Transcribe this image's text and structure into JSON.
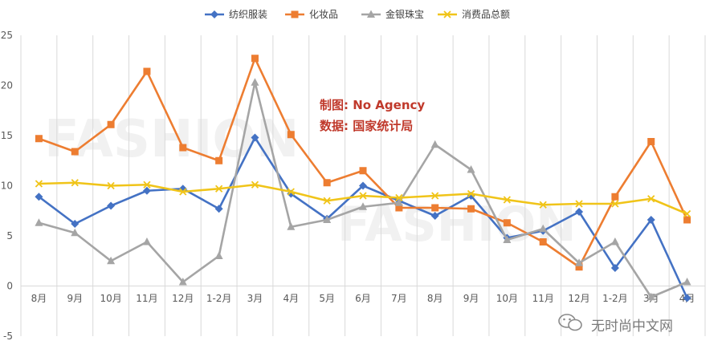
{
  "chart_data": {
    "type": "line",
    "categories": [
      "8月",
      "9月",
      "10月",
      "11月",
      "12月",
      "1-2月",
      "3月",
      "4月",
      "5月",
      "6月",
      "7月",
      "8月",
      "9月",
      "10月",
      "11月",
      "12月",
      "1-2月",
      "3月",
      "4月"
    ],
    "series": [
      {
        "name": "纺织服装",
        "color": "#4472c4",
        "marker": "diamond",
        "values": [
          8.9,
          6.2,
          8.0,
          9.5,
          9.7,
          7.7,
          14.8,
          9.2,
          6.7,
          10.0,
          8.5,
          7.0,
          9.0,
          4.8,
          5.5,
          7.4,
          1.8,
          6.6,
          -1.2
        ]
      },
      {
        "name": "化妆品",
        "color": "#ed7d31",
        "marker": "square",
        "values": [
          14.7,
          13.4,
          16.1,
          21.4,
          13.8,
          12.5,
          22.7,
          15.1,
          10.3,
          11.5,
          7.8,
          7.8,
          7.7,
          6.3,
          4.4,
          1.9,
          8.9,
          14.4,
          6.6
        ]
      },
      {
        "name": "金银珠宝",
        "color": "#a5a5a5",
        "marker": "triangle",
        "values": [
          6.3,
          5.3,
          2.5,
          4.4,
          0.4,
          3.0,
          20.3,
          5.9,
          6.6,
          7.9,
          8.3,
          14.1,
          11.6,
          4.6,
          5.7,
          2.3,
          4.4,
          -1.1,
          0.4
        ]
      },
      {
        "name": "消费品总额",
        "color": "#f0c419",
        "marker": "x",
        "values": [
          10.2,
          10.3,
          10.0,
          10.1,
          9.4,
          9.7,
          10.1,
          9.4,
          8.5,
          9.0,
          8.8,
          9.0,
          9.2,
          8.6,
          8.1,
          8.2,
          8.2,
          8.7,
          7.2
        ]
      }
    ],
    "yticks": [
      -5,
      0,
      5,
      10,
      15,
      20,
      25
    ],
    "ylim": [
      -5,
      25
    ],
    "grid": "vertical",
    "legend": "top-center"
  },
  "annotations": {
    "made_by": "制图: No Agency",
    "source": "数据: 国家统计局"
  },
  "watermark": {
    "text": "无时尚中文网"
  }
}
